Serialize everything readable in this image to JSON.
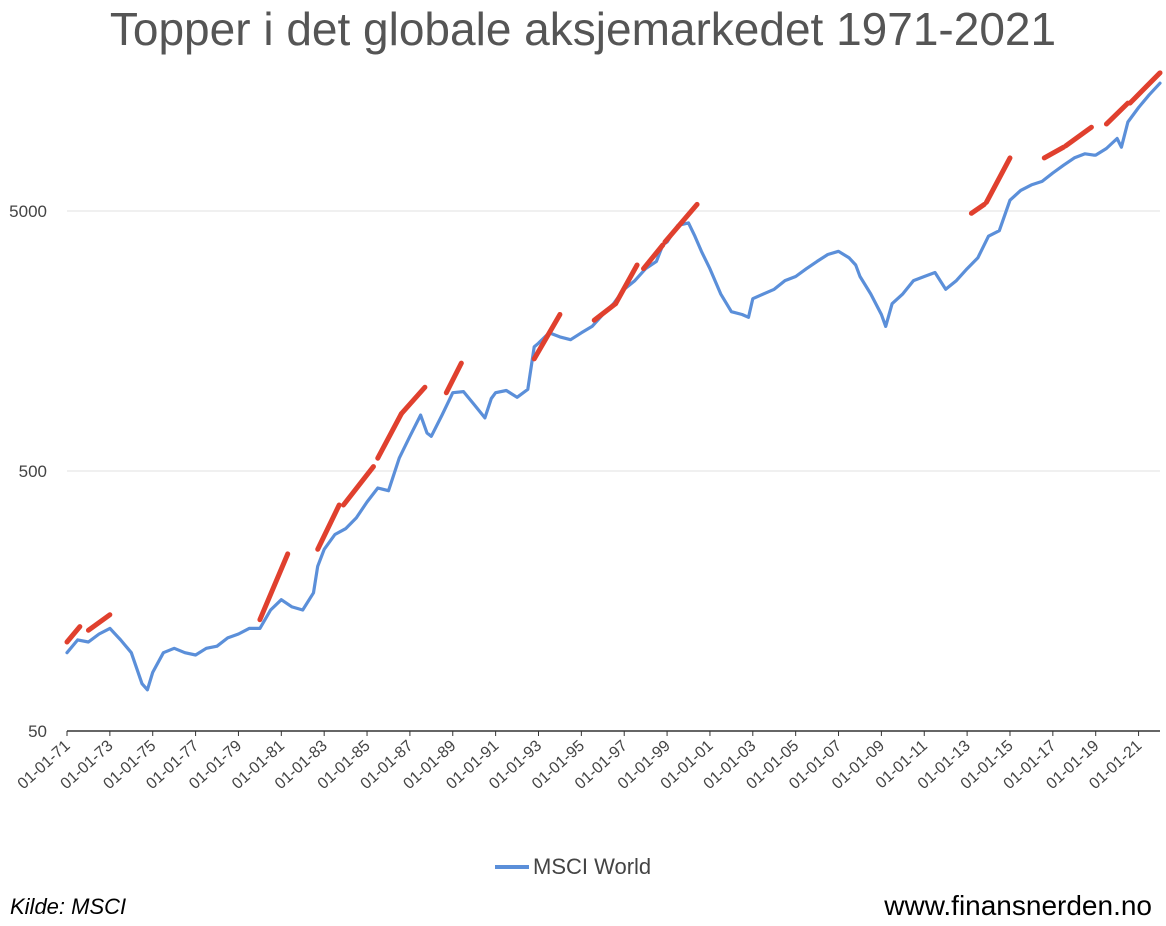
{
  "title": "Topper i det globale aksjemarkedet 1971-2021",
  "source": "Kilde: MSCI",
  "website": "www.finansnerden.no",
  "colors": {
    "series": "#5b8fd9",
    "peaks": "#e0402e",
    "grid": "#e2e2e2",
    "axis": "#333333"
  },
  "chart_data": {
    "type": "line",
    "title": "Topper i det globale aksjemarkedet 1971-2021",
    "y_scale": "log",
    "ylim": [
      50,
      20000
    ],
    "y_ticks": [
      {
        "value": 50,
        "label": "50"
      },
      {
        "value": 500,
        "label": "500"
      },
      {
        "value": 5000,
        "label": "5000"
      }
    ],
    "x_ticks": [
      "01-01-71",
      "01-01-73",
      "01-01-75",
      "01-01-77",
      "01-01-79",
      "01-01-81",
      "01-01-83",
      "01-01-85",
      "01-01-87",
      "01-01-89",
      "01-01-91",
      "01-01-93",
      "01-01-95",
      "01-01-97",
      "01-01-99",
      "01-01-01",
      "01-01-03",
      "01-01-05",
      "01-01-07",
      "01-01-09",
      "01-01-11",
      "01-01-13",
      "01-01-15",
      "01-01-17",
      "01-01-19",
      "01-01-21"
    ],
    "x_range": [
      1971.0,
      2022.0
    ],
    "legend": "bottom",
    "grid": true,
    "series": [
      {
        "name": "MSCI World",
        "x": [
          1971.0,
          1971.5,
          1972.0,
          1972.5,
          1973.0,
          1973.5,
          1974.0,
          1974.5,
          1974.75,
          1975.0,
          1975.5,
          1976.0,
          1976.5,
          1977.0,
          1977.5,
          1978.0,
          1978.5,
          1979.0,
          1979.5,
          1980.0,
          1980.5,
          1981.0,
          1981.5,
          1982.0,
          1982.5,
          1982.7,
          1983.0,
          1983.5,
          1984.0,
          1984.5,
          1985.0,
          1985.5,
          1986.0,
          1986.5,
          1987.0,
          1987.5,
          1987.8,
          1988.0,
          1988.5,
          1989.0,
          1989.5,
          1990.0,
          1990.5,
          1990.8,
          1991.0,
          1991.5,
          1992.0,
          1992.5,
          1992.8,
          1993.0,
          1993.5,
          1994.0,
          1994.5,
          1995.0,
          1995.5,
          1996.0,
          1996.5,
          1997.0,
          1997.5,
          1998.0,
          1998.5,
          1998.8,
          1999.0,
          1999.5,
          2000.0,
          2000.3,
          2000.6,
          2001.0,
          2001.5,
          2002.0,
          2002.5,
          2002.8,
          2003.0,
          2003.5,
          2004.0,
          2004.5,
          2005.0,
          2005.5,
          2006.0,
          2006.5,
          2007.0,
          2007.5,
          2007.8,
          2008.0,
          2008.5,
          2009.0,
          2009.2,
          2009.5,
          2010.0,
          2010.5,
          2011.0,
          2011.5,
          2012.0,
          2012.5,
          2013.0,
          2013.5,
          2014.0,
          2014.5,
          2015.0,
          2015.5,
          2016.0,
          2016.5,
          2017.0,
          2017.5,
          2018.0,
          2018.5,
          2018.9,
          2019.0,
          2019.5,
          2020.0,
          2020.2,
          2020.5,
          2021.0,
          2021.5,
          2022.0
        ],
        "y": [
          100,
          112,
          110,
          118,
          124,
          112,
          100,
          76,
          72,
          84,
          100,
          104,
          100,
          98,
          104,
          106,
          114,
          118,
          124,
          124,
          146,
          160,
          150,
          146,
          170,
          215,
          250,
          285,
          300,
          330,
          380,
          430,
          420,
          560,
          680,
          820,
          700,
          680,
          820,
          1000,
          1010,
          900,
          800,
          950,
          1000,
          1020,
          960,
          1030,
          1500,
          1550,
          1700,
          1640,
          1600,
          1700,
          1800,
          2000,
          2200,
          2500,
          2700,
          3000,
          3200,
          3700,
          3800,
          4400,
          4500,
          4000,
          3500,
          3000,
          2400,
          2050,
          2000,
          1950,
          2300,
          2400,
          2500,
          2700,
          2800,
          3000,
          3200,
          3400,
          3500,
          3300,
          3100,
          2800,
          2400,
          2000,
          1800,
          2200,
          2400,
          2700,
          2800,
          2900,
          2500,
          2700,
          3000,
          3300,
          4000,
          4200,
          5500,
          6000,
          6300,
          6500,
          7000,
          7500,
          8000,
          8300,
          8200,
          8200,
          8700,
          9500,
          8800,
          11000,
          12500,
          14000,
          15500
        ],
        "peak_segments": [
          [
            [
              1971.0,
              110
            ],
            [
              1971.6,
              126
            ]
          ],
          [
            [
              1972.0,
              122
            ],
            [
              1973.0,
              140
            ]
          ],
          [
            [
              1980.0,
              134
            ],
            [
              1981.3,
              240
            ]
          ],
          [
            [
              1982.7,
              250
            ],
            [
              1983.7,
              370
            ]
          ],
          [
            [
              1983.9,
              370
            ],
            [
              1985.3,
              520
            ]
          ],
          [
            [
              1985.5,
              560
            ],
            [
              1986.6,
              830
            ]
          ],
          [
            [
              1986.6,
              830
            ],
            [
              1987.7,
              1050
            ]
          ],
          [
            [
              1988.7,
              1000
            ],
            [
              1989.4,
              1300
            ]
          ],
          [
            [
              1992.8,
              1350
            ],
            [
              1994.0,
              2000
            ]
          ],
          [
            [
              1995.6,
              1900
            ],
            [
              1996.6,
              2200
            ]
          ],
          [
            [
              1996.6,
              2200
            ],
            [
              1997.6,
              3100
            ]
          ],
          [
            [
              1997.9,
              3000
            ],
            [
              1998.8,
              3700
            ]
          ],
          [
            [
              1998.9,
              3800
            ],
            [
              2000.4,
              5300
            ]
          ],
          [
            [
              2013.2,
              4900
            ],
            [
              2013.8,
              5300
            ]
          ],
          [
            [
              2013.9,
              5400
            ],
            [
              2015.0,
              8000
            ]
          ],
          [
            [
              2016.6,
              8000
            ],
            [
              2017.5,
              8800
            ]
          ],
          [
            [
              2017.6,
              8900
            ],
            [
              2018.8,
              10500
            ]
          ],
          [
            [
              2019.5,
              10800
            ],
            [
              2020.5,
              13000
            ]
          ],
          [
            [
              2020.6,
              13000
            ],
            [
              2022.0,
              17000
            ]
          ]
        ]
      }
    ]
  }
}
